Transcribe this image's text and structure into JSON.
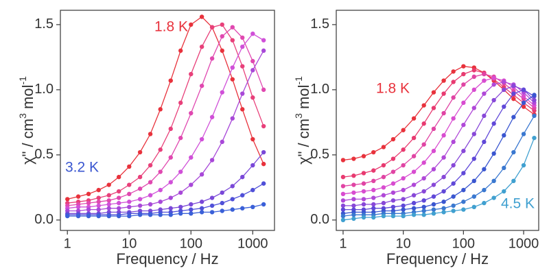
{
  "chart_data": [
    {
      "type": "line",
      "x_log": true,
      "x_label": "Frequency / Hz",
      "y_label": [
        "χ\" / cm",
        "3",
        " mol",
        "-1"
      ],
      "x": [
        1,
        1.5,
        2.2,
        3.2,
        4.7,
        6.8,
        10,
        15,
        22,
        32,
        47,
        68,
        100,
        150,
        220,
        320,
        470,
        680,
        1000,
        1500
      ],
      "xlim": [
        0.77,
        2250
      ],
      "xticks": [
        1,
        10,
        100,
        1000
      ],
      "ylim": [
        -0.08,
        1.61
      ],
      "yticks": [
        {
          "value": 0,
          "label": "0.0"
        },
        0.5,
        {
          "value": 1,
          "label": "1.0"
        },
        1.5
      ],
      "annotations": [
        {
          "text": "1.8 K",
          "color": "#e8323c"
        },
        {
          "text": "3.2 K",
          "color": "#3a56d0"
        }
      ],
      "series": [
        {
          "color": "#e8323c",
          "values": [
            0.16,
            0.18,
            0.2,
            0.23,
            0.27,
            0.33,
            0.41,
            0.52,
            0.66,
            0.85,
            1.07,
            1.3,
            1.5,
            1.56,
            1.48,
            1.3,
            1.08,
            0.85,
            0.62,
            0.43
          ]
        },
        {
          "color": "#e8407a",
          "values": [
            0.13,
            0.14,
            0.15,
            0.17,
            0.19,
            0.22,
            0.27,
            0.33,
            0.42,
            0.54,
            0.7,
            0.9,
            1.12,
            1.33,
            1.48,
            1.5,
            1.38,
            1.18,
            0.94,
            0.72
          ]
        },
        {
          "color": "#e048b0",
          "values": [
            0.11,
            0.12,
            0.13,
            0.14,
            0.15,
            0.17,
            0.2,
            0.24,
            0.29,
            0.37,
            0.48,
            0.63,
            0.82,
            1.03,
            1.24,
            1.41,
            1.48,
            1.4,
            1.22,
            1.0
          ]
        },
        {
          "color": "#d050d8",
          "values": [
            0.09,
            0.1,
            0.1,
            0.11,
            0.12,
            0.13,
            0.14,
            0.16,
            0.19,
            0.23,
            0.29,
            0.37,
            0.48,
            0.62,
            0.79,
            0.98,
            1.17,
            1.33,
            1.43,
            1.38
          ]
        },
        {
          "color": "#a848d8",
          "values": [
            0.07,
            0.07,
            0.08,
            0.08,
            0.09,
            0.09,
            0.1,
            0.11,
            0.12,
            0.14,
            0.17,
            0.21,
            0.27,
            0.35,
            0.46,
            0.6,
            0.78,
            0.97,
            1.15,
            1.3
          ]
        },
        {
          "color": "#7a48d8",
          "values": [
            0.05,
            0.05,
            0.05,
            0.05,
            0.06,
            0.06,
            0.06,
            0.07,
            0.07,
            0.08,
            0.09,
            0.1,
            0.12,
            0.14,
            0.17,
            0.21,
            0.26,
            0.33,
            0.42,
            0.52
          ]
        },
        {
          "color": "#5050d8",
          "values": [
            0.04,
            0.04,
            0.04,
            0.04,
            0.04,
            0.04,
            0.05,
            0.05,
            0.05,
            0.06,
            0.06,
            0.07,
            0.08,
            0.09,
            0.11,
            0.13,
            0.16,
            0.19,
            0.23,
            0.28
          ]
        },
        {
          "color": "#3a60d8",
          "values": [
            0.03,
            0.03,
            0.03,
            0.03,
            0.03,
            0.03,
            0.03,
            0.04,
            0.04,
            0.04,
            0.04,
            0.05,
            0.05,
            0.06,
            0.06,
            0.07,
            0.08,
            0.09,
            0.1,
            0.12
          ]
        }
      ]
    },
    {
      "type": "line",
      "x_log": true,
      "x_label": "Frequency / Hz",
      "y_label": [
        "χ\" / cm",
        "3",
        " mol",
        "-1"
      ],
      "x": [
        1,
        1.5,
        2.2,
        3.2,
        4.7,
        6.8,
        10,
        15,
        22,
        32,
        47,
        68,
        100,
        150,
        220,
        320,
        470,
        680,
        1000,
        1500
      ],
      "xlim": [
        0.77,
        1780
      ],
      "xticks": [
        1,
        10,
        100,
        1000
      ],
      "ylim": [
        -0.08,
        1.61
      ],
      "yticks": [
        {
          "value": 0,
          "label": "0.0"
        },
        0.5,
        {
          "value": 1,
          "label": "1.0"
        },
        1.5
      ],
      "annotations": [
        {
          "text": "1.8 K",
          "color": "#e8323c"
        },
        {
          "text": "4.5 K",
          "color": "#40a0d0"
        }
      ],
      "series": [
        {
          "color": "#e8323c",
          "values": [
            0.46,
            0.47,
            0.49,
            0.52,
            0.56,
            0.62,
            0.69,
            0.78,
            0.88,
            0.98,
            1.07,
            1.14,
            1.18,
            1.17,
            1.13,
            1.07,
            1.0,
            0.93,
            0.87,
            0.81
          ]
        },
        {
          "color": "#e83a70",
          "values": [
            0.33,
            0.34,
            0.36,
            0.38,
            0.42,
            0.47,
            0.54,
            0.63,
            0.74,
            0.86,
            0.97,
            1.06,
            1.12,
            1.15,
            1.13,
            1.08,
            1.02,
            0.96,
            0.9,
            0.84
          ]
        },
        {
          "color": "#e044a4",
          "values": [
            0.26,
            0.27,
            0.28,
            0.3,
            0.33,
            0.37,
            0.42,
            0.49,
            0.58,
            0.7,
            0.82,
            0.94,
            1.04,
            1.1,
            1.12,
            1.1,
            1.05,
            0.99,
            0.93,
            0.86
          ]
        },
        {
          "color": "#d84cd0",
          "values": [
            0.2,
            0.21,
            0.22,
            0.23,
            0.25,
            0.28,
            0.32,
            0.37,
            0.44,
            0.53,
            0.65,
            0.78,
            0.9,
            1.0,
            1.07,
            1.09,
            1.07,
            1.02,
            0.95,
            0.88
          ]
        },
        {
          "color": "#b048d8",
          "values": [
            0.15,
            0.16,
            0.16,
            0.17,
            0.19,
            0.21,
            0.23,
            0.27,
            0.32,
            0.39,
            0.48,
            0.6,
            0.73,
            0.86,
            0.97,
            1.04,
            1.06,
            1.04,
            0.98,
            0.9
          ]
        },
        {
          "color": "#8848d8",
          "values": [
            0.11,
            0.11,
            0.12,
            0.12,
            0.13,
            0.15,
            0.16,
            0.19,
            0.22,
            0.27,
            0.33,
            0.42,
            0.53,
            0.66,
            0.8,
            0.92,
            1.0,
            1.03,
            1.0,
            0.92
          ]
        },
        {
          "color": "#6048d8",
          "values": [
            0.08,
            0.08,
            0.08,
            0.09,
            0.09,
            0.1,
            0.11,
            0.13,
            0.15,
            0.18,
            0.22,
            0.28,
            0.36,
            0.47,
            0.6,
            0.74,
            0.87,
            0.97,
            1.0,
            0.95
          ]
        },
        {
          "color": "#3a56d0",
          "values": [
            0.05,
            0.06,
            0.06,
            0.06,
            0.07,
            0.07,
            0.08,
            0.09,
            0.1,
            0.12,
            0.14,
            0.18,
            0.23,
            0.3,
            0.39,
            0.51,
            0.65,
            0.79,
            0.9,
            0.96
          ]
        },
        {
          "color": "#3a78d0",
          "values": [
            0.03,
            0.04,
            0.04,
            0.04,
            0.05,
            0.05,
            0.05,
            0.06,
            0.07,
            0.08,
            0.09,
            0.11,
            0.14,
            0.18,
            0.23,
            0.3,
            0.4,
            0.52,
            0.66,
            0.8
          ]
        },
        {
          "color": "#40a0d0",
          "values": [
            0.0,
            0.01,
            0.02,
            0.02,
            0.03,
            0.03,
            0.03,
            0.04,
            0.04,
            0.05,
            0.06,
            0.07,
            0.08,
            0.1,
            0.13,
            0.17,
            0.22,
            0.3,
            0.42,
            0.63
          ]
        }
      ]
    }
  ]
}
